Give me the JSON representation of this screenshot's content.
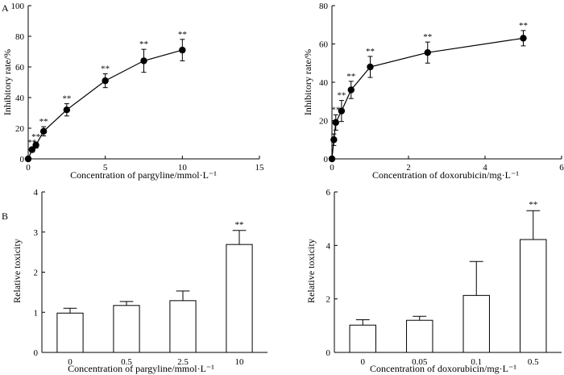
{
  "panels": {
    "a": "A",
    "b": "B"
  },
  "chart_data": [
    {
      "id": "a-left",
      "type": "line",
      "xlabel": "Concentration of pargyline/mmol·L⁻¹",
      "ylabel": "Inhibitory rate/%",
      "xlim": [
        0,
        15
      ],
      "ylim": [
        0,
        100
      ],
      "xticks": [
        0,
        5,
        10,
        15
      ],
      "yticks": [
        0,
        20,
        40,
        60,
        80,
        100
      ],
      "x": [
        0,
        0.25,
        0.5,
        1,
        2.5,
        5,
        7.5,
        10
      ],
      "y": [
        0,
        6,
        9,
        18,
        32,
        51,
        64,
        71
      ],
      "err": [
        0,
        1.5,
        2,
        3,
        4,
        4.5,
        7.5,
        7
      ],
      "sig": [
        "",
        "**",
        "**",
        "**",
        "**",
        "**",
        "**",
        "**"
      ]
    },
    {
      "id": "a-right",
      "type": "line",
      "xlabel": "Concentration of doxorubicin/mg·L⁻¹",
      "ylabel": "Inhibitory rate/%",
      "xlim": [
        0,
        6
      ],
      "ylim": [
        0,
        80
      ],
      "xticks": [
        0,
        2,
        4,
        6
      ],
      "yticks": [
        0,
        20,
        40,
        60,
        80
      ],
      "x": [
        0,
        0.05,
        0.1,
        0.25,
        0.5,
        1,
        2.5,
        5
      ],
      "y": [
        0,
        10,
        19,
        25,
        36,
        48,
        55.5,
        63
      ],
      "err": [
        0,
        3,
        4,
        5.5,
        4.5,
        5.5,
        5.5,
        4
      ],
      "sig": [
        "",
        "",
        "**",
        "**",
        "**",
        "**",
        "**",
        "**"
      ]
    },
    {
      "id": "b-left",
      "type": "bar",
      "xlabel": "Concentration of pargyline/mmol·L⁻¹",
      "ylabel": "Relative toxicity",
      "ylim": [
        0,
        4
      ],
      "yticks": [
        0,
        1,
        2,
        3,
        4
      ],
      "categories": [
        "0",
        "0.5",
        "2.5",
        "10"
      ],
      "values": [
        0.98,
        1.17,
        1.29,
        2.69
      ],
      "err": [
        0.12,
        0.1,
        0.24,
        0.35
      ],
      "sig": [
        "",
        "",
        "",
        "**"
      ]
    },
    {
      "id": "b-right",
      "type": "bar",
      "xlabel": "Concentration of doxorubicin/mg·L⁻¹",
      "ylabel": "Relative toxicity",
      "ylim": [
        0,
        6
      ],
      "yticks": [
        0,
        2,
        4,
        6
      ],
      "categories": [
        "0",
        "0.05",
        "0.1",
        "0.5"
      ],
      "values": [
        1.02,
        1.2,
        2.13,
        4.22
      ],
      "err": [
        0.2,
        0.15,
        1.27,
        1.08
      ],
      "sig": [
        "",
        "",
        "",
        "**"
      ]
    }
  ]
}
